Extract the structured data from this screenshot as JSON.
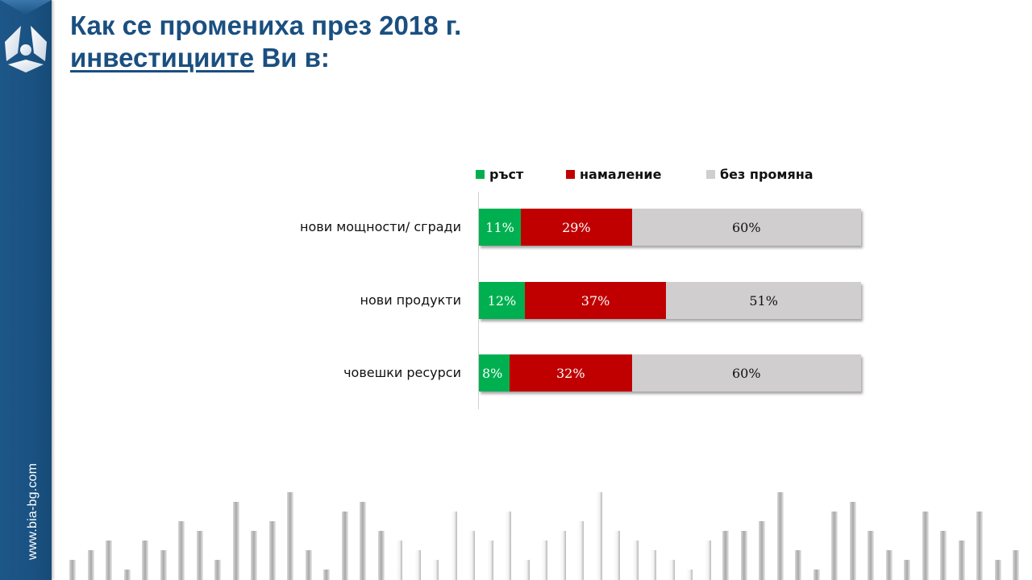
{
  "sidebar": {
    "site_url": "www.bia-bg.com",
    "logo_icon": "bia-logo-icon"
  },
  "title": {
    "line1": "Как се промениха през 2018 г.",
    "line2_underlined": "инвестициите",
    "line2_rest": " Ви в:"
  },
  "chart_data": {
    "type": "bar",
    "orientation": "horizontal",
    "stacked": true,
    "normalized": true,
    "title": "Как се промениха през 2018 г. инвестициите Ви в:",
    "categories": [
      "нови мощности/ сгради",
      "нови продукти",
      "човешки ресурси"
    ],
    "series": [
      {
        "name": "ръст",
        "color": "#00b050",
        "values": [
          11,
          12,
          8
        ],
        "labels": [
          "11%",
          "12%",
          "8%"
        ]
      },
      {
        "name": "намаление",
        "color": "#c00000",
        "values": [
          29,
          37,
          32
        ],
        "labels": [
          "29%",
          "37%",
          "32%"
        ]
      },
      {
        "name": "без промяна",
        "color": "#d0cece",
        "values": [
          60,
          51,
          60
        ],
        "labels": [
          "60%",
          "51%",
          "60%"
        ]
      }
    ],
    "xlabel": "",
    "ylabel": "",
    "xlim": [
      0,
      100
    ],
    "grid": false,
    "legend": "top"
  }
}
